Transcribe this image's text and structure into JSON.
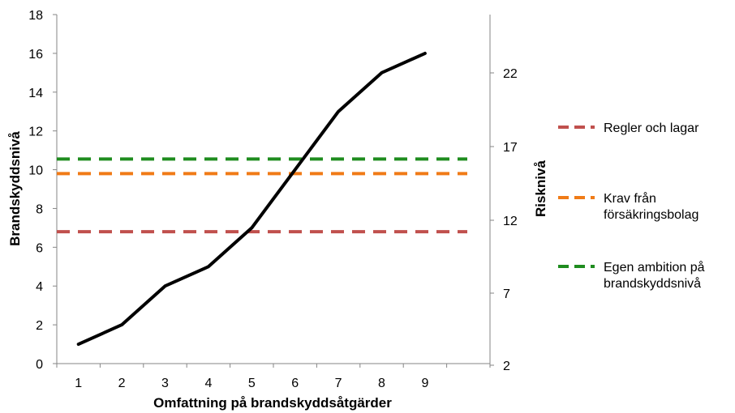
{
  "chart_data": {
    "type": "line",
    "xlabel": "Omfattning på brandskyddsåtgärder",
    "ylabel_left": "Brandskyddsnivå",
    "ylabel_right": "Risknivå",
    "x_categories": [
      "1",
      "2",
      "3",
      "4",
      "5",
      "6",
      "7",
      "8",
      "9"
    ],
    "ylim_left": [
      0,
      18
    ],
    "yticks_left": [
      0,
      2,
      4,
      6,
      8,
      10,
      12,
      14,
      16,
      18
    ],
    "yticks_right": [
      "2",
      "7",
      "12",
      "17",
      "22"
    ],
    "grid": false,
    "legend_position": "right",
    "series": [
      {
        "values": [
          1,
          2,
          4,
          5,
          7,
          10,
          13,
          15,
          16
        ],
        "color": "#000000",
        "style": "solid"
      }
    ],
    "reference_lines": [
      {
        "name": "Regler och lagar",
        "value": 6.8,
        "color": "#c0504d",
        "style": "dashed"
      },
      {
        "name": "Krav från försäkringsbolag",
        "value": 9.8,
        "color": "#f07b17",
        "style": "dashed"
      },
      {
        "name": "Egen ambition på brandskyddsnivå",
        "value": 10.55,
        "color": "#1f8c1f",
        "style": "dashed"
      }
    ],
    "legend": [
      {
        "lines": [
          "Regler och lagar"
        ],
        "color": "#c0504d"
      },
      {
        "lines": [
          "Krav från",
          "försäkringsbolag"
        ],
        "color": "#f07b17"
      },
      {
        "lines": [
          "Egen ambition på",
          "brandskyddsnivå"
        ],
        "color": "#1f8c1f"
      }
    ]
  }
}
